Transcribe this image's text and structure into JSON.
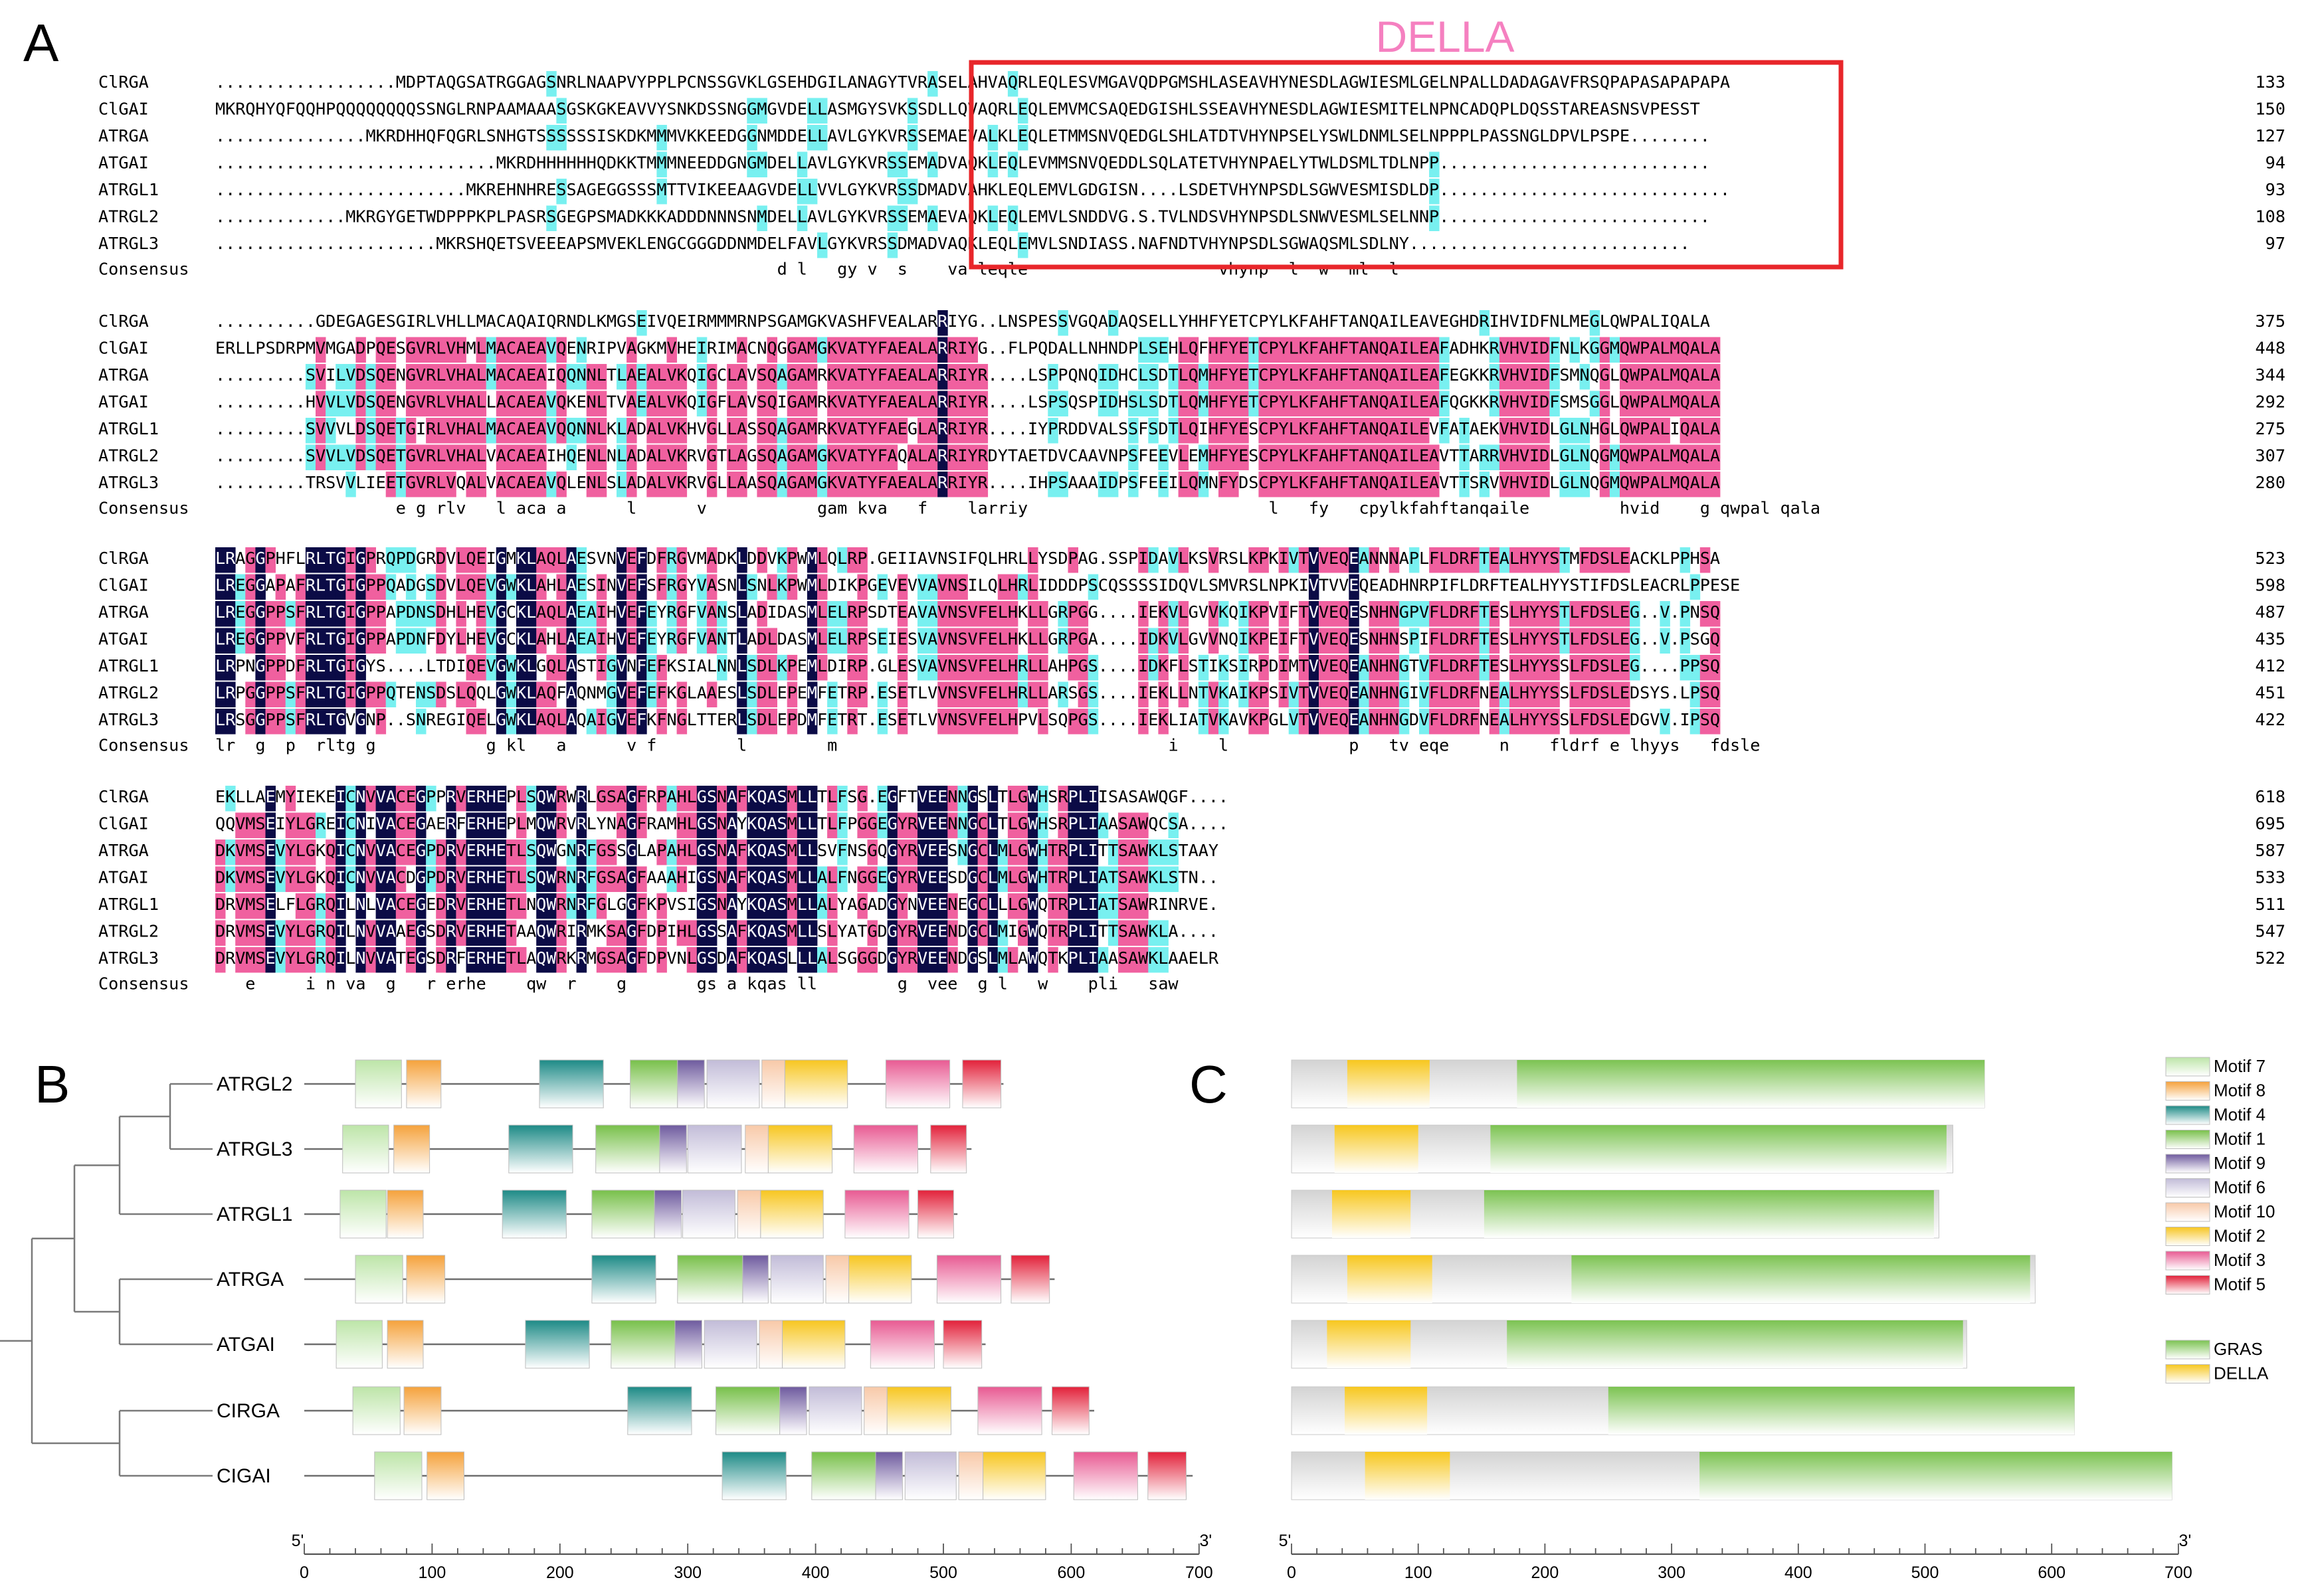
{
  "panels": {
    "a": "A",
    "b": "B",
    "c": "C"
  },
  "della_label": "DELLA",
  "colors": {
    "full": "#0b0b46",
    "partial": "#f0609f",
    "weak": "#78f0f0",
    "della_box": "#e8262a",
    "della_text": "#f580c0"
  },
  "alignment": {
    "consensus_label": "Consensus",
    "blocks": [
      {
        "rows": [
          {
            "name": "ClRGA",
            "seq": "..................MDPTAQGSATRGGAGSNRLNAAPVYPPLPCNSSGVKLGSEHDGILANAGYTVRASELAHVAQRLEQLESVMGAVQDPGMSHLASEAVHYNESDLAGWIESMLGELNPALLDADAGAVFRSQPAPASAPAPAPA",
            "num": "133"
          },
          {
            "name": "ClGAI",
            "seq": "MKRQHYQFQQHPQQQQQQQQSSNGLRNPAAMAAASGSKGKEAVVYSNKDSSNGGMGVDELLASMGYSVKSSDLLQVAQRLEQLEMVMCSAQEDGISHLSSEAVHYNESDLAGWIESMITELNPNCADQPLDQSSTAREASNSVPESST",
            "num": "150"
          },
          {
            "name": "ATRGA",
            "seq": "...............MKRDHHQFQGRLSNHGTSSSSSSISKDKMMMVKKEEDGGNMDDELLAVLGYKVRSSEMAEVALKLEQLETMMSNVQEDGLSHLATDTVHYNPSELYSWLDNMLSELNPPPLPASSNGLDPVLPSPE........",
            "num": "127"
          },
          {
            "name": "ATGAI",
            "seq": "............................MKRDHHHHHHQDKKTMMMNEEDDGNGMDELLAVLGYKVRSSEMADVAQKLEQLEVMMSNVQEDDLSQLATETVHYNPAELYTWLDSMLTDLNPP...........................",
            "num": "94"
          },
          {
            "name": "ATRGL1",
            "seq": ".........................MKREHNHRESSAGEGGSSSMTTVIKEEAAGVDELLVVLGYKVRSSDMADVAHKLEQLEMVLGDGISN....LSDETVHYNPSDLSGWVESMISDLDP.............................",
            "num": "93"
          },
          {
            "name": "ATRGL2",
            "seq": ".............MKRGYGETWDPPPKPLPASRSGEGPSMADKKKADDDNNNSNMDELLAVLGYKVRSSEMAEVAQKLEQLEMVLSNDDVG.S.TVLNDSVHYNPSDLSNWVESMLSELNNP...........................",
            "num": "108"
          },
          {
            "name": "ATRGL3",
            "seq": "......................MKRSHQETSVEEEAPSMVEKLENGCGGGDDNMDELFAVLGYKVRSSDMADVAQKLEQLEMVLSNDIASS.NAFNDTVHYNPSDLSGWAQSMLSDLNY............................",
            "num": "97"
          }
        ],
        "consensus": "                                                        d l   gy v  s    va leqle                   vhynp  l  w  ml  l"
      },
      {
        "rows": [
          {
            "name": "ClRGA",
            "seq": "..........GDEGAGESGIRLVHLLMACAQAIQRNDLKMGSEIVQEIRMMMRNPSGAMGKVASHFVEALARRIYG..LNSPESSVGQADAQSELLYHHFYETCPYLKFAHFTANQAILEAVEGHDRIHVIDFNLMEGLQWPALIQALA",
            "num": "375"
          },
          {
            "name": "ClGAI",
            "seq": "ERLLPSDRPMVMGADPQESGVRLVHMLMACAEAVQENRIPVAGKMVHEIRIMACNQGGAMGKVATYFAEALARRIYG..FLPQDALLNHNDPLSEHLQFHFYETCPYLKFAHFTANQAILEAFADHKRVHVIDFNLKGGMQWPALMQALA",
            "num": "448"
          },
          {
            "name": "ATRGA",
            "seq": ".........SVILVDSQENGVRLVHALMACAEAIQQNNLTLAEALVKQIGCLAVSQAGAMRKVATYFAEALARRIYR....LSPPQNQIDHCLSDTLQMHFYETCPYLKFAHFTANQAILEAFEGKKRVHVIDFSMNQGLQWPALMQALA",
            "num": "344"
          },
          {
            "name": "ATGAI",
            "seq": ".........HVVLVDSQENGVRLVHALLACAEAVQKENLTVAEALVKQIGFLAVSQIGAMRKVATYFAEALARRIYR....LSPSQSPIDHSLSDTLQMHFYETCPYLKFAHFTANQAILEAFQGKKRVHVIDFSMSGGLQWPALMQALA",
            "num": "292"
          },
          {
            "name": "ATRGL1",
            "seq": ".........SVVVLDSQETGIRLVHALMACAEAVQQNNLKLADALVKHVGLLASSQAGAMRKVATYFAEGLARRIYR....IYPRDDVALSSFSDTLQIHFYESCPYLKFAHFTANQAILEVFATAEKVHVIDLGLNHGLQWPALIQALA",
            "num": "275"
          },
          {
            "name": "ATRGL2",
            "seq": ".........SVVLVDSQETGVRLVHALVACAEAIHQENLNLADALVKRVGTLAGSQAGAMGKVATYFAQALARRIYRDYTAETDVCAAVNPSFEEVLEMHFYESCPYLKFAHFTANQAILEAVTTARRVHVIDLGLNQGMQWPALMQALA",
            "num": "307"
          },
          {
            "name": "ATRGL3",
            "seq": ".........TRSVVLIEETGVRLVQALVACAEAVQLENLSLADALVKRVGLLAASQAGAMGKVATYFAEALARRIYR....IHPSAAAIDPSFEEILQMNFYDSCPYLKFAHFTANQAILEAVTTSRVVHVIDLGLNQGMQWPALMQALA",
            "num": "280"
          }
        ],
        "consensus": "                  e g rlv   l aca a      l      v           gam kva   f    larriy                        l   fy   cpylkfahftanqaile         hvid    g qwpal qala"
      },
      {
        "rows": [
          {
            "name": "ClRGA",
            "seq": "LRAGGPHFLRLTGIGPRQPDGRDVLQEIGMKLAQLAESVNVEFDFRGVMADKLDDVKPWMLQLRP.GEIIAVNSIFQLHRLLYSDPAG.SSPIDAVLKSVRSLKPKIVTVVEQEANNNAPLFLDRFTEALHYYSTMFDSLEACKLPPHSA",
            "num": "523"
          },
          {
            "name": "ClGAI",
            "seq": "LREGGAPAFRLTGIGPPQADGSDVLQEVGWKLAHLAESINVEFSFRGYVASNLSNLKPWMLDIKPGEVEVVAVNSILQLHRLIDDDPSCQSSSSIDQVLSMVRSLNPKIVTVVEQEADHNRPIFLDRFTEALHYYSTIFDSLEACRLPPESE",
            "num": "598"
          },
          {
            "name": "ATRGA",
            "seq": "LREGGPPSFRLTGIGPPAPDNSDHLHEVGCKLAQLAEAIHVEFEYRGFVANSLADIDASMLELRPSDTEAVAVNSVFELHKLLGRPGG....IEKVLGVVKQIKPVIFTVVEQESNHNGPVFLDRFTESLHYYSTLFDSLEG..V.PNSQ",
            "num": "487"
          },
          {
            "name": "ATGAI",
            "seq": "LREGGPPVFRLTGIGPPAPDNFDYLHEVGCKLAHLAEAIHVEFEYRGFVANTLADLDASMLELRPSEIESVAVNSVFELHKLLGRPGA....IDKVLGVVNQIKPEIFTVVEQESNHNSPIFLDRFTESLHYYSTLFDSLEG..V.PSGQ",
            "num": "435"
          },
          {
            "name": "ATRGL1",
            "seq": "LRPNGPPDFRLTGIGYS....LTDIQEVGWKLGQLASTIGVNFEFKSIALNNLSDLKPEMLDIRP.GLESVAVNSVFELHRLLAHPGS....IDKFLSTIKSIRPDIMTVVEQEANHNGTVFLDRFTESLHYYSSLFDSLEG....PPSQ",
            "num": "412"
          },
          {
            "name": "ATRGL2",
            "seq": "LRPGGPPSFRLTGIGPPQTENSDSLQQLGWKLAQFAQNMGVEFEFKGLAAESLSDLEPEMFETRP.ESETLVVNSVFELHRLLARSGS....IEKLLNTVKAIKPSIVTVVEQEANHNGIVFLDRFNEALHYYSSLFDSLEDSYS.LPSQ",
            "num": "451"
          },
          {
            "name": "ATRGL3",
            "seq": "LRSGGPPSFRLTGVGNP..SNREGIQELGWKLAQLAQAIGVEFKFNGLTTERLSDLEPDMFETRT.ESETLVVNSVFELHPVLSQPGS....IEKLIATVKAVKPGLVTVVEQEANHNGDVFLDRFNEALHYYSSLFDSLEDGVV.IPSQ",
            "num": "422"
          }
        ],
        "consensus": "lr  g  p  rltg g           g kl   a      v f        l        m                                 i    l            p   tv eqe     n    fldrf e lhyys   fdsle"
      },
      {
        "rows": [
          {
            "name": "ClRGA",
            "seq": "EKLLAEMYIEKEICNVVACEGPPRVERHEPLSQWRWRLGSAGFRPAHLGSNAFKQASMLLTLFSG.EGFTVEENNGSLTLGWHSRPLIISASAWQGF....",
            "num": "618"
          },
          {
            "name": "ClGAI",
            "seq": "QQVMSEIYLGREICNIVACEGAERFERHEPLMQWRVRLYNAGFRAMHLGSNAYKQASMLLTLFPGGEGYRVEENNGCLTLGWHSRPLIAASAWQCSA....",
            "num": "695"
          },
          {
            "name": "ATRGA",
            "seq": "DKVMSEVYLGKQICNVVACEGPDRVERHETLSQWGNRFGSSGLAPAHLGSNAFKQASMLLSVFNSGQGYRVEESNGCLMLGWHTRPLITTSAWKLSTAAY",
            "num": "587"
          },
          {
            "name": "ATGAI",
            "seq": "DKVMSEVYLGKQICNVVACDGPDRVERHETLSQWRNRFGSAGFAAAHIGSNAFKQASMLLALFNGGEGYRVEESDGCLMLGWHTRPLIATSAWKLSTN..",
            "num": "533"
          },
          {
            "name": "ATRGL1",
            "seq": "DRVMSELFLGRQILNLVACEGEDRVERHETLNQWRNRFGLGGFKPVSIGSNAYKQASMLLALYAGADGYNVEENEGCLLLGWQTRPLIATSAWRINRVE.",
            "num": "511"
          },
          {
            "name": "ATRGL2",
            "seq": "DRVMSEVYLGRQILNVVAAEGSDRVERHETAAQWRIRMKSAGFDPIHLGSSAFKQASMLLSLYATGDGYRVEENDGCLMIGWQTRPLITTSAWKLA....",
            "num": "547"
          },
          {
            "name": "ATRGL3",
            "seq": "DRVMSEVYLGRQILNVVATEGSDRFERHETLAQWRKRMGSAGFDPVNLGSDAFKQASLLLALSGGGDGYRVEENDGSLMLAWQTKPLIAASAWKLAAELR",
            "num": "522"
          }
        ],
        "consensus": "   e     i n va  g   r erhe    qw  r    g       gs a kqas ll        g  vee  g l   w    pli   saw"
      }
    ]
  },
  "tree": {
    "order": [
      "ATRGL2",
      "ATRGL3",
      "ATRGL1",
      "ATRGA",
      "ATGAI",
      "CIRGA",
      "CIGAI"
    ]
  },
  "motif_structures": {
    "axis_end_left": "5'",
    "axis_end_right": "3'",
    "axis_ticks": [
      "0",
      "100",
      "200",
      "300",
      "400",
      "500",
      "600",
      "700"
    ],
    "lengths": [
      547,
      522,
      511,
      587,
      533,
      618,
      695
    ],
    "motif_legend": [
      {
        "name": "Motif 7",
        "color": "#bde5a8"
      },
      {
        "name": "Motif 8",
        "color": "#f5a23c"
      },
      {
        "name": "Motif 4",
        "color": "#1d8a86"
      },
      {
        "name": "Motif 1",
        "color": "#78c04a"
      },
      {
        "name": "Motif 9",
        "color": "#6e5a9e"
      },
      {
        "name": "Motif 6",
        "color": "#c2bcd8"
      },
      {
        "name": "Motif 10",
        "color": "#f8c9a8"
      },
      {
        "name": "Motif 2",
        "color": "#f7c620"
      },
      {
        "name": "Motif 3",
        "color": "#e85a92"
      },
      {
        "name": "Motif 5",
        "color": "#e2213a"
      }
    ],
    "motifs_per_sequence": [
      [
        [
          "Motif 7",
          40,
          76
        ],
        [
          "Motif 8",
          80,
          107
        ],
        [
          "Motif 4",
          184,
          234
        ],
        [
          "Motif 1",
          255,
          292
        ],
        [
          "Motif 9",
          292,
          313
        ],
        [
          "Motif 6",
          315,
          356
        ],
        [
          "Motif 10",
          358,
          376
        ],
        [
          "Motif 2",
          376,
          425
        ],
        [
          "Motif 3",
          455,
          505
        ],
        [
          "Motif 5",
          515,
          545
        ]
      ],
      [
        [
          "Motif 7",
          30,
          66
        ],
        [
          "Motif 8",
          70,
          98
        ],
        [
          "Motif 4",
          160,
          210
        ],
        [
          "Motif 1",
          228,
          278
        ],
        [
          "Motif 9",
          278,
          299
        ],
        [
          "Motif 6",
          300,
          342
        ],
        [
          "Motif 10",
          345,
          363
        ],
        [
          "Motif 2",
          363,
          413
        ],
        [
          "Motif 3",
          430,
          480
        ],
        [
          "Motif 5",
          490,
          518
        ]
      ],
      [
        [
          "Motif 7",
          28,
          64
        ],
        [
          "Motif 8",
          65,
          93
        ],
        [
          "Motif 4",
          155,
          205
        ],
        [
          "Motif 1",
          225,
          274
        ],
        [
          "Motif 9",
          274,
          295
        ],
        [
          "Motif 6",
          296,
          337
        ],
        [
          "Motif 10",
          339,
          357
        ],
        [
          "Motif 2",
          357,
          406
        ],
        [
          "Motif 3",
          423,
          473
        ],
        [
          "Motif 5",
          480,
          508
        ]
      ],
      [
        [
          "Motif 7",
          40,
          77
        ],
        [
          "Motif 8",
          80,
          110
        ],
        [
          "Motif 4",
          225,
          275
        ],
        [
          "Motif 1",
          292,
          343
        ],
        [
          "Motif 9",
          343,
          363
        ],
        [
          "Motif 6",
          365,
          406
        ],
        [
          "Motif 10",
          408,
          426
        ],
        [
          "Motif 2",
          426,
          475
        ],
        [
          "Motif 3",
          495,
          545
        ],
        [
          "Motif 5",
          553,
          583
        ]
      ],
      [
        [
          "Motif 7",
          25,
          61
        ],
        [
          "Motif 8",
          65,
          93
        ],
        [
          "Motif 4",
          173,
          223
        ],
        [
          "Motif 1",
          240,
          290
        ],
        [
          "Motif 9",
          290,
          311
        ],
        [
          "Motif 6",
          313,
          354
        ],
        [
          "Motif 10",
          356,
          374
        ],
        [
          "Motif 2",
          374,
          423
        ],
        [
          "Motif 3",
          443,
          493
        ],
        [
          "Motif 5",
          500,
          530
        ]
      ],
      [
        [
          "Motif 7",
          38,
          75
        ],
        [
          "Motif 8",
          78,
          107
        ],
        [
          "Motif 4",
          253,
          303
        ],
        [
          "Motif 1",
          322,
          372
        ],
        [
          "Motif 9",
          372,
          393
        ],
        [
          "Motif 6",
          395,
          436
        ],
        [
          "Motif 10",
          438,
          456
        ],
        [
          "Motif 2",
          456,
          506
        ],
        [
          "Motif 3",
          527,
          577
        ],
        [
          "Motif 5",
          585,
          614
        ]
      ],
      [
        [
          "Motif 7",
          55,
          92
        ],
        [
          "Motif 8",
          96,
          125
        ],
        [
          "Motif 4",
          327,
          377
        ],
        [
          "Motif 1",
          397,
          447
        ],
        [
          "Motif 9",
          447,
          468
        ],
        [
          "Motif 6",
          470,
          510
        ],
        [
          "Motif 10",
          512,
          531
        ],
        [
          "Motif 2",
          531,
          580
        ],
        [
          "Motif 3",
          602,
          652
        ],
        [
          "Motif 5",
          660,
          690
        ]
      ]
    ]
  },
  "domain_structures": {
    "axis_end_left": "5'",
    "axis_end_right": "3'",
    "axis_ticks": [
      "0",
      "100",
      "200",
      "300",
      "400",
      "500",
      "600",
      "700"
    ],
    "legend": [
      {
        "name": "GRAS",
        "color": "#7cc352"
      },
      {
        "name": "DELLA",
        "color": "#f7c71f"
      }
    ],
    "domains_per_sequence": [
      {
        "della": [
          44,
          109
        ],
        "gras": [
          178,
          547
        ]
      },
      {
        "della": [
          34,
          100
        ],
        "gras": [
          157,
          517
        ]
      },
      {
        "della": [
          32,
          94
        ],
        "gras": [
          152,
          507
        ]
      },
      {
        "della": [
          44,
          111
        ],
        "gras": [
          221,
          583
        ]
      },
      {
        "della": [
          28,
          94
        ],
        "gras": [
          170,
          530
        ]
      },
      {
        "della": [
          42,
          107
        ],
        "gras": [
          250,
          618
        ]
      },
      {
        "della": [
          58,
          125
        ],
        "gras": [
          322,
          695
        ]
      }
    ]
  }
}
